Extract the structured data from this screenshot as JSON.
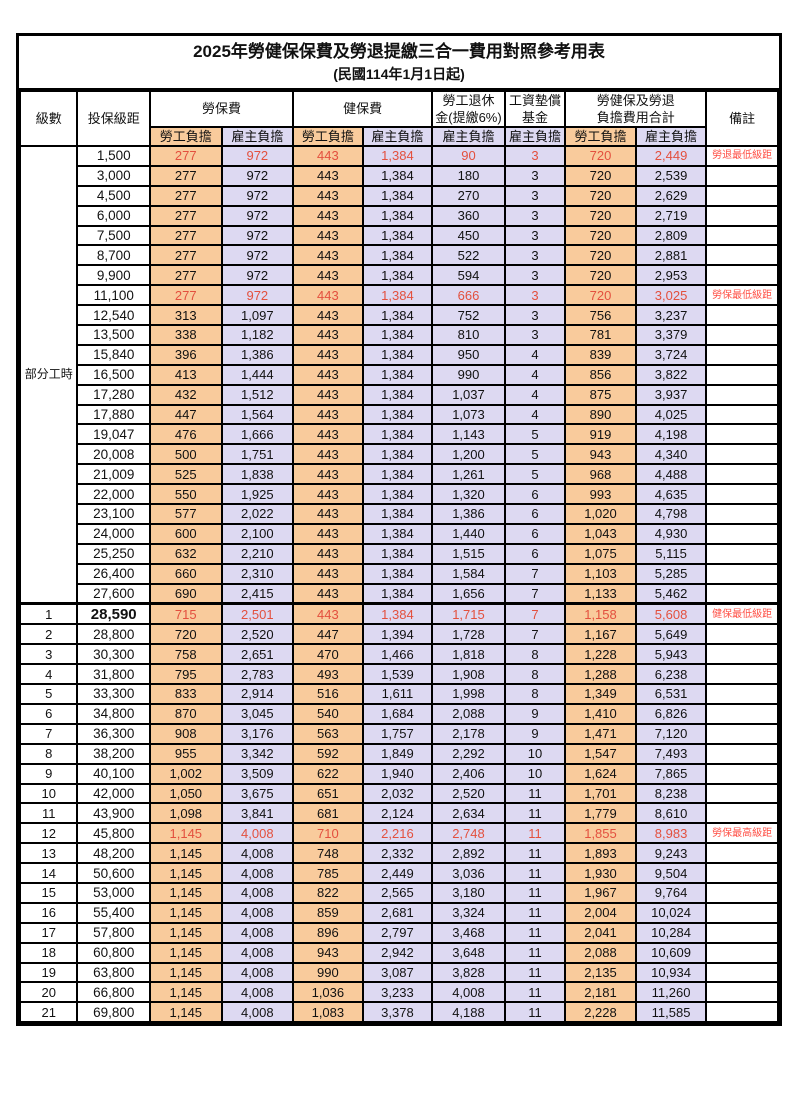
{
  "title": "2025年勞健保保費及勞退提繳三合一費用對照參考用表",
  "subtitle": "(民國114年1月1日起)",
  "colors": {
    "employee_col_bg": "#F9CB9C",
    "employer_col_bg": "#DDD9F2",
    "highlight_number_red": "#E3503E",
    "note_red": "#FF4E44",
    "border_black": "#000000"
  },
  "header": {
    "level": "級數",
    "bracket": "投保級距",
    "labor_insurance": "勞保費",
    "health_insurance": "健保費",
    "pension_line1": "勞工退休",
    "pension_line2": "金(提繳6%)",
    "wage_fund_line1": "工資墊償",
    "wage_fund_line2": "基金",
    "total_line1": "勞健保及勞退",
    "total_line2": "負擔費用合計",
    "employee_share": "勞工負擔",
    "employer_share": "雇主負擔",
    "notes": "備註"
  },
  "part_time_label": "部分工時",
  "rows": [
    {
      "level": "",
      "bracket": "1,500",
      "li_emp": "277",
      "li_er": "972",
      "hi_emp": "443",
      "hi_er": "1,384",
      "pension": "90",
      "fund": "3",
      "tot_emp": "720",
      "tot_er": "2,449",
      "note": "勞退最低級距",
      "red": true
    },
    {
      "level": "",
      "bracket": "3,000",
      "li_emp": "277",
      "li_er": "972",
      "hi_emp": "443",
      "hi_er": "1,384",
      "pension": "180",
      "fund": "3",
      "tot_emp": "720",
      "tot_er": "2,539",
      "note": ""
    },
    {
      "level": "",
      "bracket": "4,500",
      "li_emp": "277",
      "li_er": "972",
      "hi_emp": "443",
      "hi_er": "1,384",
      "pension": "270",
      "fund": "3",
      "tot_emp": "720",
      "tot_er": "2,629",
      "note": ""
    },
    {
      "level": "",
      "bracket": "6,000",
      "li_emp": "277",
      "li_er": "972",
      "hi_emp": "443",
      "hi_er": "1,384",
      "pension": "360",
      "fund": "3",
      "tot_emp": "720",
      "tot_er": "2,719",
      "note": ""
    },
    {
      "level": "",
      "bracket": "7,500",
      "li_emp": "277",
      "li_er": "972",
      "hi_emp": "443",
      "hi_er": "1,384",
      "pension": "450",
      "fund": "3",
      "tot_emp": "720",
      "tot_er": "2,809",
      "note": ""
    },
    {
      "level": "",
      "bracket": "8,700",
      "li_emp": "277",
      "li_er": "972",
      "hi_emp": "443",
      "hi_er": "1,384",
      "pension": "522",
      "fund": "3",
      "tot_emp": "720",
      "tot_er": "2,881",
      "note": ""
    },
    {
      "level": "",
      "bracket": "9,900",
      "li_emp": "277",
      "li_er": "972",
      "hi_emp": "443",
      "hi_er": "1,384",
      "pension": "594",
      "fund": "3",
      "tot_emp": "720",
      "tot_er": "2,953",
      "note": ""
    },
    {
      "level": "",
      "bracket": "11,100",
      "li_emp": "277",
      "li_er": "972",
      "hi_emp": "443",
      "hi_er": "1,384",
      "pension": "666",
      "fund": "3",
      "tot_emp": "720",
      "tot_er": "3,025",
      "note": "勞保最低級距",
      "red": true
    },
    {
      "level": "",
      "bracket": "12,540",
      "li_emp": "313",
      "li_er": "1,097",
      "hi_emp": "443",
      "hi_er": "1,384",
      "pension": "752",
      "fund": "3",
      "tot_emp": "756",
      "tot_er": "3,237",
      "note": ""
    },
    {
      "level": "",
      "bracket": "13,500",
      "li_emp": "338",
      "li_er": "1,182",
      "hi_emp": "443",
      "hi_er": "1,384",
      "pension": "810",
      "fund": "3",
      "tot_emp": "781",
      "tot_er": "3,379",
      "note": ""
    },
    {
      "level": "",
      "bracket": "15,840",
      "li_emp": "396",
      "li_er": "1,386",
      "hi_emp": "443",
      "hi_er": "1,384",
      "pension": "950",
      "fund": "4",
      "tot_emp": "839",
      "tot_er": "3,724",
      "note": ""
    },
    {
      "level": "",
      "bracket": "16,500",
      "li_emp": "413",
      "li_er": "1,444",
      "hi_emp": "443",
      "hi_er": "1,384",
      "pension": "990",
      "fund": "4",
      "tot_emp": "856",
      "tot_er": "3,822",
      "note": ""
    },
    {
      "level": "",
      "bracket": "17,280",
      "li_emp": "432",
      "li_er": "1,512",
      "hi_emp": "443",
      "hi_er": "1,384",
      "pension": "1,037",
      "fund": "4",
      "tot_emp": "875",
      "tot_er": "3,937",
      "note": ""
    },
    {
      "level": "",
      "bracket": "17,880",
      "li_emp": "447",
      "li_er": "1,564",
      "hi_emp": "443",
      "hi_er": "1,384",
      "pension": "1,073",
      "fund": "4",
      "tot_emp": "890",
      "tot_er": "4,025",
      "note": ""
    },
    {
      "level": "",
      "bracket": "19,047",
      "li_emp": "476",
      "li_er": "1,666",
      "hi_emp": "443",
      "hi_er": "1,384",
      "pension": "1,143",
      "fund": "5",
      "tot_emp": "919",
      "tot_er": "4,198",
      "note": ""
    },
    {
      "level": "",
      "bracket": "20,008",
      "li_emp": "500",
      "li_er": "1,751",
      "hi_emp": "443",
      "hi_er": "1,384",
      "pension": "1,200",
      "fund": "5",
      "tot_emp": "943",
      "tot_er": "4,340",
      "note": ""
    },
    {
      "level": "",
      "bracket": "21,009",
      "li_emp": "525",
      "li_er": "1,838",
      "hi_emp": "443",
      "hi_er": "1,384",
      "pension": "1,261",
      "fund": "5",
      "tot_emp": "968",
      "tot_er": "4,488",
      "note": ""
    },
    {
      "level": "",
      "bracket": "22,000",
      "li_emp": "550",
      "li_er": "1,925",
      "hi_emp": "443",
      "hi_er": "1,384",
      "pension": "1,320",
      "fund": "6",
      "tot_emp": "993",
      "tot_er": "4,635",
      "note": ""
    },
    {
      "level": "",
      "bracket": "23,100",
      "li_emp": "577",
      "li_er": "2,022",
      "hi_emp": "443",
      "hi_er": "1,384",
      "pension": "1,386",
      "fund": "6",
      "tot_emp": "1,020",
      "tot_er": "4,798",
      "note": ""
    },
    {
      "level": "",
      "bracket": "24,000",
      "li_emp": "600",
      "li_er": "2,100",
      "hi_emp": "443",
      "hi_er": "1,384",
      "pension": "1,440",
      "fund": "6",
      "tot_emp": "1,043",
      "tot_er": "4,930",
      "note": ""
    },
    {
      "level": "",
      "bracket": "25,250",
      "li_emp": "632",
      "li_er": "2,210",
      "hi_emp": "443",
      "hi_er": "1,384",
      "pension": "1,515",
      "fund": "6",
      "tot_emp": "1,075",
      "tot_er": "5,115",
      "note": ""
    },
    {
      "level": "",
      "bracket": "26,400",
      "li_emp": "660",
      "li_er": "2,310",
      "hi_emp": "443",
      "hi_er": "1,384",
      "pension": "1,584",
      "fund": "7",
      "tot_emp": "1,103",
      "tot_er": "5,285",
      "note": ""
    },
    {
      "level": "",
      "bracket": "27,600",
      "li_emp": "690",
      "li_er": "2,415",
      "hi_emp": "443",
      "hi_er": "1,384",
      "pension": "1,656",
      "fund": "7",
      "tot_emp": "1,133",
      "tot_er": "5,462",
      "note": ""
    },
    {
      "level": "1",
      "bracket": "28,590",
      "li_emp": "715",
      "li_er": "2,501",
      "hi_emp": "443",
      "hi_er": "1,384",
      "pension": "1,715",
      "fund": "7",
      "tot_emp": "1,158",
      "tot_er": "5,608",
      "note": "健保最低級距",
      "red": true,
      "hl": true,
      "thick": true
    },
    {
      "level": "2",
      "bracket": "28,800",
      "li_emp": "720",
      "li_er": "2,520",
      "hi_emp": "447",
      "hi_er": "1,394",
      "pension": "1,728",
      "fund": "7",
      "tot_emp": "1,167",
      "tot_er": "5,649",
      "note": ""
    },
    {
      "level": "3",
      "bracket": "30,300",
      "li_emp": "758",
      "li_er": "2,651",
      "hi_emp": "470",
      "hi_er": "1,466",
      "pension": "1,818",
      "fund": "8",
      "tot_emp": "1,228",
      "tot_er": "5,943",
      "note": ""
    },
    {
      "level": "4",
      "bracket": "31,800",
      "li_emp": "795",
      "li_er": "2,783",
      "hi_emp": "493",
      "hi_er": "1,539",
      "pension": "1,908",
      "fund": "8",
      "tot_emp": "1,288",
      "tot_er": "6,238",
      "note": ""
    },
    {
      "level": "5",
      "bracket": "33,300",
      "li_emp": "833",
      "li_er": "2,914",
      "hi_emp": "516",
      "hi_er": "1,611",
      "pension": "1,998",
      "fund": "8",
      "tot_emp": "1,349",
      "tot_er": "6,531",
      "note": ""
    },
    {
      "level": "6",
      "bracket": "34,800",
      "li_emp": "870",
      "li_er": "3,045",
      "hi_emp": "540",
      "hi_er": "1,684",
      "pension": "2,088",
      "fund": "9",
      "tot_emp": "1,410",
      "tot_er": "6,826",
      "note": ""
    },
    {
      "level": "7",
      "bracket": "36,300",
      "li_emp": "908",
      "li_er": "3,176",
      "hi_emp": "563",
      "hi_er": "1,757",
      "pension": "2,178",
      "fund": "9",
      "tot_emp": "1,471",
      "tot_er": "7,120",
      "note": ""
    },
    {
      "level": "8",
      "bracket": "38,200",
      "li_emp": "955",
      "li_er": "3,342",
      "hi_emp": "592",
      "hi_er": "1,849",
      "pension": "2,292",
      "fund": "10",
      "tot_emp": "1,547",
      "tot_er": "7,493",
      "note": ""
    },
    {
      "level": "9",
      "bracket": "40,100",
      "li_emp": "1,002",
      "li_er": "3,509",
      "hi_emp": "622",
      "hi_er": "1,940",
      "pension": "2,406",
      "fund": "10",
      "tot_emp": "1,624",
      "tot_er": "7,865",
      "note": ""
    },
    {
      "level": "10",
      "bracket": "42,000",
      "li_emp": "1,050",
      "li_er": "3,675",
      "hi_emp": "651",
      "hi_er": "2,032",
      "pension": "2,520",
      "fund": "11",
      "tot_emp": "1,701",
      "tot_er": "8,238",
      "note": ""
    },
    {
      "level": "11",
      "bracket": "43,900",
      "li_emp": "1,098",
      "li_er": "3,841",
      "hi_emp": "681",
      "hi_er": "2,124",
      "pension": "2,634",
      "fund": "11",
      "tot_emp": "1,779",
      "tot_er": "8,610",
      "note": ""
    },
    {
      "level": "12",
      "bracket": "45,800",
      "li_emp": "1,145",
      "li_er": "4,008",
      "hi_emp": "710",
      "hi_er": "2,216",
      "pension": "2,748",
      "fund": "11",
      "tot_emp": "1,855",
      "tot_er": "8,983",
      "note": "勞保最高級距",
      "red": true
    },
    {
      "level": "13",
      "bracket": "48,200",
      "li_emp": "1,145",
      "li_er": "4,008",
      "hi_emp": "748",
      "hi_er": "2,332",
      "pension": "2,892",
      "fund": "11",
      "tot_emp": "1,893",
      "tot_er": "9,243",
      "note": ""
    },
    {
      "level": "14",
      "bracket": "50,600",
      "li_emp": "1,145",
      "li_er": "4,008",
      "hi_emp": "785",
      "hi_er": "2,449",
      "pension": "3,036",
      "fund": "11",
      "tot_emp": "1,930",
      "tot_er": "9,504",
      "note": ""
    },
    {
      "level": "15",
      "bracket": "53,000",
      "li_emp": "1,145",
      "li_er": "4,008",
      "hi_emp": "822",
      "hi_er": "2,565",
      "pension": "3,180",
      "fund": "11",
      "tot_emp": "1,967",
      "tot_er": "9,764",
      "note": ""
    },
    {
      "level": "16",
      "bracket": "55,400",
      "li_emp": "1,145",
      "li_er": "4,008",
      "hi_emp": "859",
      "hi_er": "2,681",
      "pension": "3,324",
      "fund": "11",
      "tot_emp": "2,004",
      "tot_er": "10,024",
      "note": ""
    },
    {
      "level": "17",
      "bracket": "57,800",
      "li_emp": "1,145",
      "li_er": "4,008",
      "hi_emp": "896",
      "hi_er": "2,797",
      "pension": "3,468",
      "fund": "11",
      "tot_emp": "2,041",
      "tot_er": "10,284",
      "note": ""
    },
    {
      "level": "18",
      "bracket": "60,800",
      "li_emp": "1,145",
      "li_er": "4,008",
      "hi_emp": "943",
      "hi_er": "2,942",
      "pension": "3,648",
      "fund": "11",
      "tot_emp": "2,088",
      "tot_er": "10,609",
      "note": ""
    },
    {
      "level": "19",
      "bracket": "63,800",
      "li_emp": "1,145",
      "li_er": "4,008",
      "hi_emp": "990",
      "hi_er": "3,087",
      "pension": "3,828",
      "fund": "11",
      "tot_emp": "2,135",
      "tot_er": "10,934",
      "note": ""
    },
    {
      "level": "20",
      "bracket": "66,800",
      "li_emp": "1,145",
      "li_er": "4,008",
      "hi_emp": "1,036",
      "hi_er": "3,233",
      "pension": "4,008",
      "fund": "11",
      "tot_emp": "2,181",
      "tot_er": "11,260",
      "note": ""
    },
    {
      "level": "21",
      "bracket": "69,800",
      "li_emp": "1,145",
      "li_er": "4,008",
      "hi_emp": "1,083",
      "hi_er": "3,378",
      "pension": "4,188",
      "fund": "11",
      "tot_emp": "2,228",
      "tot_er": "11,585",
      "note": ""
    }
  ]
}
